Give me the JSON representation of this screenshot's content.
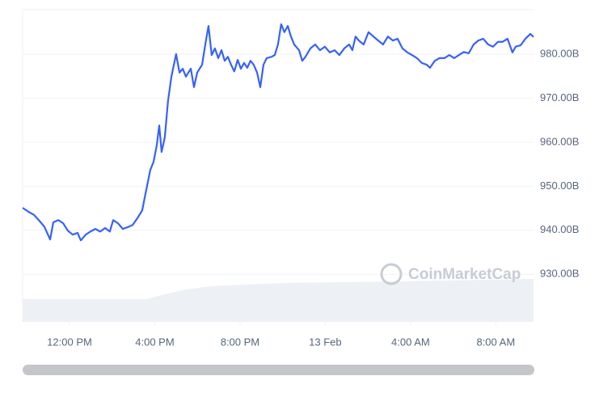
{
  "chart_data": {
    "type": "line",
    "watermark": "CoinMarketCap",
    "x": [
      9.8,
      10.07,
      10.33,
      10.56,
      10.82,
      11.09,
      11.24,
      11.47,
      11.7,
      11.92,
      12.15,
      12.38,
      12.53,
      12.76,
      12.98,
      13.21,
      13.44,
      13.67,
      13.89,
      14.05,
      14.27,
      14.5,
      14.73,
      14.96,
      15.18,
      15.41,
      15.56,
      15.79,
      15.94,
      16.09,
      16.21,
      16.32,
      16.47,
      16.62,
      16.78,
      17.0,
      17.16,
      17.31,
      17.46,
      17.69,
      17.84,
      17.99,
      18.22,
      18.37,
      18.52,
      18.67,
      18.82,
      18.98,
      19.13,
      19.28,
      19.43,
      19.58,
      19.73,
      19.89,
      20.04,
      20.19,
      20.34,
      20.49,
      20.64,
      20.8,
      20.95,
      21.1,
      21.25,
      21.48,
      21.63,
      21.78,
      21.93,
      22.08,
      22.24,
      22.39,
      22.54,
      22.77,
      22.92,
      23.07,
      23.3,
      23.53,
      23.75,
      23.98,
      24.21,
      24.44,
      24.66,
      24.89,
      25.12,
      25.27,
      25.42,
      25.57,
      25.8,
      26.03,
      26.26,
      26.48,
      26.71,
      26.94,
      27.17,
      27.39,
      27.62,
      27.85,
      28.07,
      28.3,
      28.53,
      28.76,
      28.91,
      29.14,
      29.36,
      29.59,
      29.82,
      30.05,
      30.27,
      30.5,
      30.73,
      30.96,
      31.18,
      31.41,
      31.64,
      31.87,
      32.1,
      32.32,
      32.55,
      32.78,
      32.93,
      33.16,
      33.39,
      33.62,
      33.77
    ],
    "series": [
      {
        "color": "#3861fb",
        "values": [
          945.1,
          944.2,
          943.5,
          942.3,
          940.8,
          937.9,
          941.8,
          942.3,
          941.6,
          939.9,
          939.0,
          939.4,
          937.7,
          939.0,
          939.7,
          940.3,
          939.7,
          940.5,
          939.7,
          942.3,
          941.6,
          940.3,
          940.7,
          941.2,
          942.7,
          944.5,
          948.2,
          953.7,
          955.5,
          959.2,
          963.8,
          957.8,
          961.1,
          969.3,
          974.9,
          980.0,
          975.8,
          976.7,
          974.9,
          976.7,
          972.5,
          975.8,
          977.6,
          982.2,
          986.4,
          979.8,
          981.3,
          979.1,
          980.9,
          978.5,
          979.4,
          977.6,
          976.1,
          978.7,
          976.7,
          978.0,
          976.9,
          978.5,
          977.6,
          975.8,
          972.5,
          977.6,
          979.1,
          979.4,
          979.8,
          982.2,
          986.8,
          985.0,
          986.4,
          984.0,
          982.2,
          980.9,
          978.5,
          979.4,
          981.3,
          982.2,
          980.9,
          981.7,
          980.4,
          980.9,
          979.8,
          981.3,
          982.2,
          980.9,
          984.0,
          983.1,
          982.2,
          985.0,
          984.0,
          983.1,
          982.2,
          984.0,
          983.1,
          983.5,
          981.3,
          980.4,
          979.8,
          979.1,
          978.0,
          977.6,
          976.9,
          978.5,
          979.1,
          979.1,
          979.8,
          979.1,
          979.8,
          980.5,
          980.2,
          982.2,
          983.1,
          983.5,
          982.2,
          981.7,
          982.8,
          982.8,
          983.5,
          980.4,
          981.7,
          982.0,
          983.5,
          984.6,
          983.9
        ]
      }
    ],
    "xlim": [
      9.8,
      33.77
    ],
    "xticks": [
      {
        "value": 12,
        "label": "12:00 PM"
      },
      {
        "value": 16,
        "label": "4:00 PM"
      },
      {
        "value": 20,
        "label": "8:00 PM"
      },
      {
        "value": 24,
        "label": "13 Feb"
      },
      {
        "value": 28,
        "label": "4:00 AM"
      },
      {
        "value": 32,
        "label": "8:00 AM"
      }
    ],
    "ylim": [
      919.2,
      990.1
    ],
    "yticks": [
      {
        "value": 930,
        "label": "930.00B"
      },
      {
        "value": 940,
        "label": "940.00B"
      },
      {
        "value": 950,
        "label": "950.00B"
      },
      {
        "value": 960,
        "label": "960.00B"
      },
      {
        "value": 970,
        "label": "970.00B"
      },
      {
        "value": 980,
        "label": "980.00B"
      }
    ],
    "grid": true
  }
}
